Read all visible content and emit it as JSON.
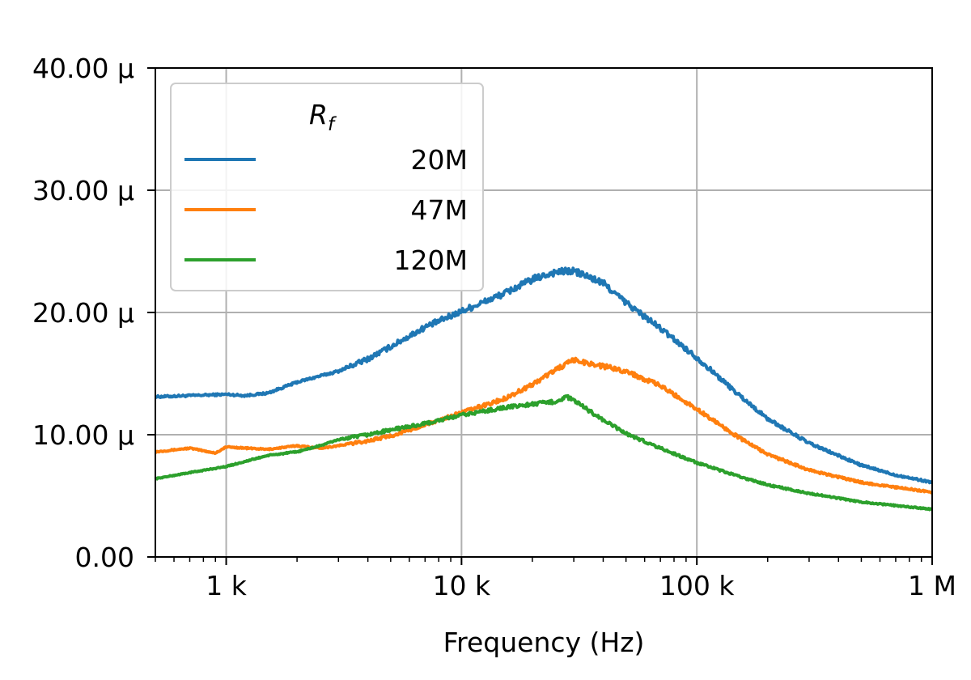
{
  "chart_data": {
    "type": "line",
    "title": "",
    "xlabel": "Frequency (Hz)",
    "ylabel": "",
    "xscale": "log",
    "xlim": [
      500,
      1000000
    ],
    "ylim": [
      0,
      4e-05
    ],
    "grid": true,
    "x_ticks": [
      {
        "value": 1000,
        "label": "1 k"
      },
      {
        "value": 10000,
        "label": "10 k"
      },
      {
        "value": 100000,
        "label": "100 k"
      },
      {
        "value": 1000000,
        "label": "1 M"
      }
    ],
    "y_ticks": [
      {
        "value": 0,
        "label": "0.00"
      },
      {
        "value": 1e-05,
        "label": "10.00 µ"
      },
      {
        "value": 2e-05,
        "label": "20.00 µ"
      },
      {
        "value": 3e-05,
        "label": "30.00 µ"
      },
      {
        "value": 4e-05,
        "label": "40.00 µ"
      }
    ],
    "legend": {
      "title": "R",
      "title_subscript": "f",
      "placement": "upper-left"
    },
    "series": [
      {
        "name": "20M",
        "color": "#1f77b4",
        "x": [
          500,
          700,
          1000,
          1200,
          1500,
          2000,
          2500,
          3000,
          4000,
          5000,
          7000,
          10000,
          15000,
          20000,
          25000,
          30000,
          40000,
          50000,
          70000,
          100000,
          150000,
          200000,
          300000,
          500000,
          700000,
          1000000
        ],
        "y": [
          1.31e-05,
          1.32e-05,
          1.33e-05,
          1.32e-05,
          1.34e-05,
          1.43e-05,
          1.48e-05,
          1.52e-05,
          1.62e-05,
          1.72e-05,
          1.88e-05,
          2.01e-05,
          2.15e-05,
          2.27e-05,
          2.33e-05,
          2.34e-05,
          2.24e-05,
          2.08e-05,
          1.87e-05,
          1.63e-05,
          1.33e-05,
          1.13e-05,
          9.3e-06,
          7.5e-06,
          6.7e-06,
          6.1e-06
        ]
      },
      {
        "name": "47M",
        "color": "#ff7f0e",
        "x": [
          500,
          700,
          900,
          1000,
          1500,
          2000,
          2500,
          3000,
          4000,
          5000,
          7000,
          10000,
          15000,
          20000,
          25000,
          30000,
          40000,
          50000,
          70000,
          100000,
          150000,
          200000,
          300000,
          500000,
          700000,
          1000000
        ],
        "y": [
          8.6e-06,
          8.9e-06,
          8.5e-06,
          9e-06,
          8.8e-06,
          9.1e-06,
          8.9e-06,
          9.1e-06,
          9.5e-06,
          9.9e-06,
          1.08e-05,
          1.18e-05,
          1.29e-05,
          1.41e-05,
          1.53e-05,
          1.61e-05,
          1.56e-05,
          1.52e-05,
          1.4e-05,
          1.21e-05,
          9.8e-06,
          8.4e-06,
          7.1e-06,
          6.1e-06,
          5.7e-06,
          5.3e-06
        ]
      },
      {
        "name": "120M",
        "color": "#2ca02c",
        "x": [
          500,
          700,
          1000,
          1500,
          2000,
          2500,
          3000,
          4000,
          5000,
          7000,
          10000,
          15000,
          20000,
          25000,
          28000,
          30000,
          40000,
          50000,
          70000,
          100000,
          150000,
          200000,
          300000,
          500000,
          700000,
          1000000
        ],
        "y": [
          6.4e-06,
          6.9e-06,
          7.4e-06,
          8.3e-06,
          8.6e-06,
          9.1e-06,
          9.6e-06,
          1e-05,
          1.04e-05,
          1.09e-05,
          1.16e-05,
          1.22e-05,
          1.25e-05,
          1.27e-05,
          1.31e-05,
          1.28e-05,
          1.12e-05,
          1.01e-05,
          8.9e-06,
          7.7e-06,
          6.6e-06,
          5.9e-06,
          5.2e-06,
          4.5e-06,
          4.2e-06,
          3.9e-06
        ]
      }
    ]
  }
}
